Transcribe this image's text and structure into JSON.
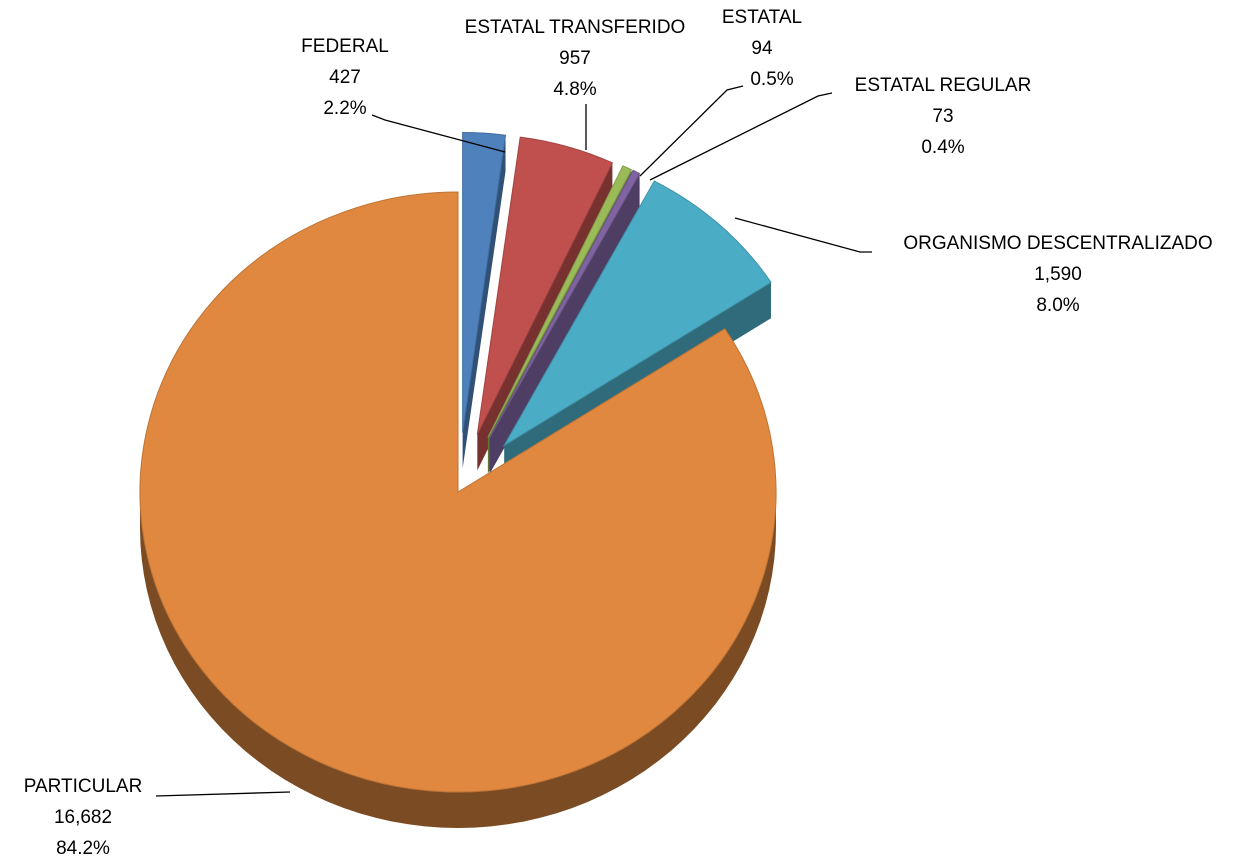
{
  "chart_data": {
    "type": "pie",
    "categories": [
      "FEDERAL",
      "ESTATAL TRANSFERIDO",
      "ESTATAL",
      "ESTATAL REGULAR",
      "ORGANISMO DESCENTRALIZADO",
      "PARTICULAR"
    ],
    "values": [
      427,
      957,
      94,
      73,
      1590,
      16682
    ],
    "value_labels": [
      "427",
      "957",
      "94",
      "73",
      "1,590",
      "16,682"
    ],
    "percent_labels": [
      "2.2%",
      "4.8%",
      "0.5%",
      "0.4%",
      "8.0%",
      "84.2%"
    ],
    "colors": [
      "#4f81bd",
      "#c0504d",
      "#9bbb59",
      "#8064a2",
      "#4bacc6",
      "#e0883f"
    ],
    "exploded": [
      true,
      true,
      true,
      true,
      true,
      false
    ]
  }
}
